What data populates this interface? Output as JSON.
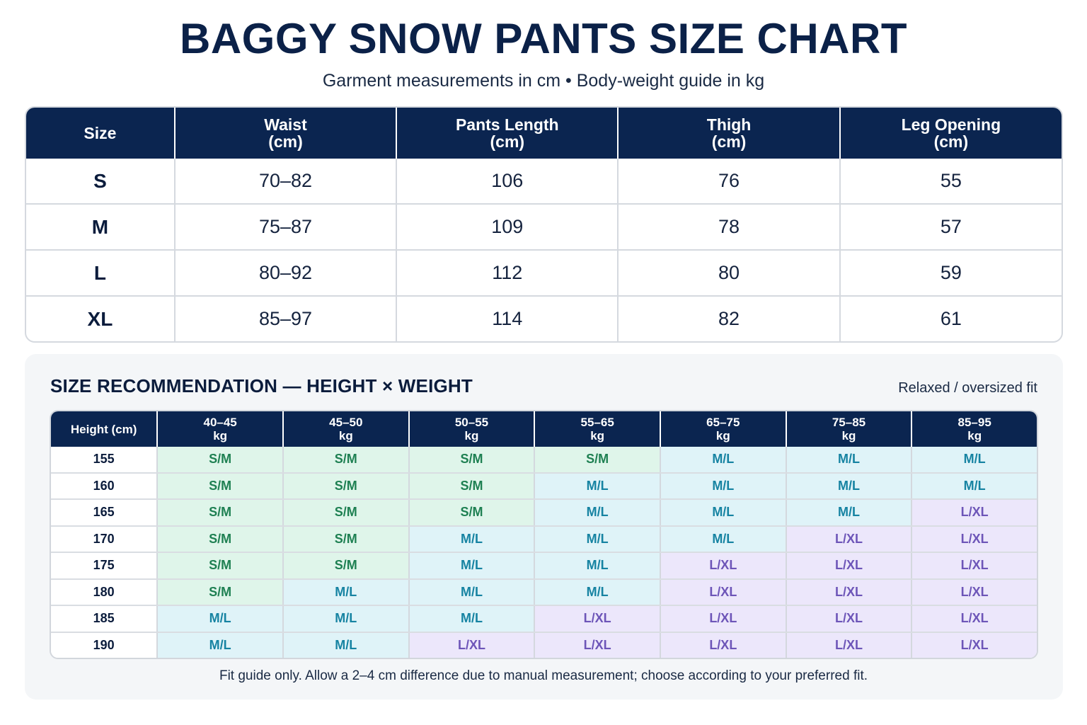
{
  "title": "BAGGY SNOW PANTS SIZE CHART",
  "subtitle": "Garment measurements in cm • Body-weight guide in kg",
  "size_table": {
    "headers": [
      {
        "line1": "Size",
        "line2": ""
      },
      {
        "line1": "Waist",
        "line2": "(cm)"
      },
      {
        "line1": "Pants Length",
        "line2": "(cm)"
      },
      {
        "line1": "Thigh",
        "line2": "(cm)"
      },
      {
        "line1": "Leg Opening",
        "line2": "(cm)"
      }
    ],
    "rows": [
      [
        "S",
        "70–82",
        "106",
        "76",
        "55"
      ],
      [
        "M",
        "75–87",
        "109",
        "78",
        "57"
      ],
      [
        "L",
        "80–92",
        "112",
        "80",
        "59"
      ],
      [
        "XL",
        "85–97",
        "114",
        "82",
        "61"
      ]
    ]
  },
  "recommendation": {
    "title": "SIZE RECOMMENDATION — HEIGHT × WEIGHT",
    "note": "Relaxed / oversized fit",
    "height_header": "Height (cm)",
    "weight_headers": [
      {
        "range": "40–45",
        "unit": "kg"
      },
      {
        "range": "45–50",
        "unit": "kg"
      },
      {
        "range": "50–55",
        "unit": "kg"
      },
      {
        "range": "55–65",
        "unit": "kg"
      },
      {
        "range": "65–75",
        "unit": "kg"
      },
      {
        "range": "75–85",
        "unit": "kg"
      },
      {
        "range": "85–95",
        "unit": "kg"
      }
    ],
    "rows": [
      {
        "height": "155",
        "sizes": [
          "S/M",
          "S/M",
          "S/M",
          "S/M",
          "M/L",
          "M/L",
          "M/L"
        ]
      },
      {
        "height": "160",
        "sizes": [
          "S/M",
          "S/M",
          "S/M",
          "M/L",
          "M/L",
          "M/L",
          "M/L"
        ]
      },
      {
        "height": "165",
        "sizes": [
          "S/M",
          "S/M",
          "S/M",
          "M/L",
          "M/L",
          "M/L",
          "L/XL"
        ]
      },
      {
        "height": "170",
        "sizes": [
          "S/M",
          "S/M",
          "M/L",
          "M/L",
          "M/L",
          "L/XL",
          "L/XL"
        ]
      },
      {
        "height": "175",
        "sizes": [
          "S/M",
          "S/M",
          "M/L",
          "M/L",
          "L/XL",
          "L/XL",
          "L/XL"
        ]
      },
      {
        "height": "180",
        "sizes": [
          "S/M",
          "M/L",
          "M/L",
          "M/L",
          "L/XL",
          "L/XL",
          "L/XL"
        ]
      },
      {
        "height": "185",
        "sizes": [
          "M/L",
          "M/L",
          "M/L",
          "L/XL",
          "L/XL",
          "L/XL",
          "L/XL"
        ]
      },
      {
        "height": "190",
        "sizes": [
          "M/L",
          "M/L",
          "L/XL",
          "L/XL",
          "L/XL",
          "L/XL",
          "L/XL"
        ]
      }
    ],
    "colors": {
      "S/M": {
        "bg": "#dff5ea",
        "fg": "#1e8052"
      },
      "M/L": {
        "bg": "#dff3f8",
        "fg": "#1683a2"
      },
      "L/XL": {
        "bg": "#ece7fb",
        "fg": "#6d55b8"
      }
    }
  },
  "footnote": "Fit guide only. Allow a 2–4 cm difference due to manual measurement; choose according to your preferred fit."
}
